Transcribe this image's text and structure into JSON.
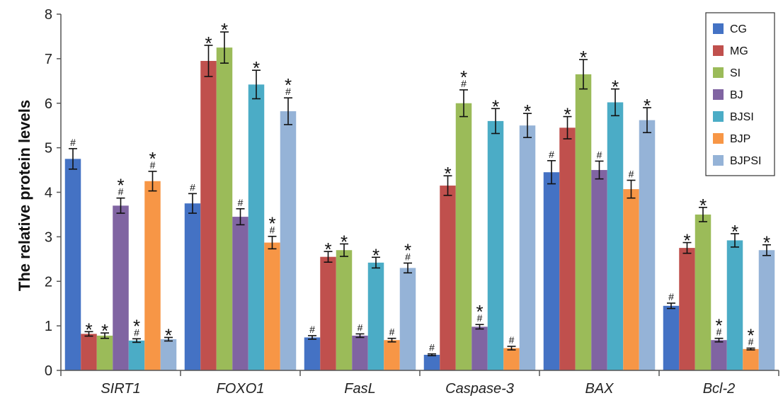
{
  "chart_data": {
    "type": "bar",
    "ylabel": "The relative protein levels",
    "ylim": [
      0,
      8
    ],
    "yticks": [
      "0",
      "1",
      "2",
      "3",
      "4",
      "5",
      "6",
      "7",
      "8"
    ],
    "categories": [
      "SIRT1",
      "FOXO1",
      "FasL",
      "Caspase-3",
      "BAX",
      "Bcl-2"
    ],
    "legend_position": "top-right",
    "series": [
      {
        "name": "CG",
        "color": "#4472C4",
        "values": [
          4.75,
          3.75,
          0.74,
          0.35,
          4.45,
          1.45
        ],
        "errors": [
          0.23,
          0.22,
          0.04,
          0.02,
          0.26,
          0.06
        ],
        "annotations": [
          "#",
          "#",
          "#",
          "#",
          "#",
          "#"
        ]
      },
      {
        "name": "MG",
        "color": "#C0504D",
        "values": [
          0.82,
          6.95,
          2.55,
          4.15,
          5.45,
          2.75
        ],
        "errors": [
          0.05,
          0.35,
          0.12,
          0.22,
          0.25,
          0.12
        ],
        "annotations": [
          "*",
          "*",
          "*",
          "*",
          "*",
          "*"
        ]
      },
      {
        "name": "SI",
        "color": "#9BBB59",
        "values": [
          0.78,
          7.25,
          2.7,
          6.0,
          6.65,
          3.5
        ],
        "errors": [
          0.06,
          0.35,
          0.14,
          0.3,
          0.33,
          0.16
        ],
        "annotations": [
          "*",
          "*",
          "*",
          "*\n#",
          "*",
          "*"
        ]
      },
      {
        "name": "BJ",
        "color": "#8064A2",
        "values": [
          3.7,
          3.45,
          0.78,
          0.98,
          4.5,
          0.68
        ],
        "errors": [
          0.17,
          0.18,
          0.04,
          0.05,
          0.2,
          0.04
        ],
        "annotations": [
          "*\n#",
          "#",
          "#",
          "*\n#",
          "#",
          "*\n#"
        ]
      },
      {
        "name": "BJSI",
        "color": "#4BACC6",
        "values": [
          0.67,
          6.42,
          2.42,
          5.6,
          6.02,
          2.92
        ],
        "errors": [
          0.04,
          0.32,
          0.12,
          0.28,
          0.3,
          0.15
        ],
        "annotations": [
          "*\n#",
          "*",
          "*",
          "*",
          "*",
          "*"
        ]
      },
      {
        "name": "BJP",
        "color": "#F79646",
        "values": [
          4.25,
          2.87,
          0.68,
          0.5,
          4.07,
          0.48
        ],
        "errors": [
          0.22,
          0.14,
          0.04,
          0.04,
          0.2,
          0.02
        ],
        "annotations": [
          "*\n#",
          "*\n#",
          "#",
          "#",
          "#",
          "*\n#"
        ]
      },
      {
        "name": "BJPSI",
        "color": "#95B3D7",
        "values": [
          0.7,
          5.82,
          2.3,
          5.5,
          5.62,
          2.7
        ],
        "errors": [
          0.04,
          0.3,
          0.11,
          0.27,
          0.28,
          0.12
        ],
        "annotations": [
          "*",
          "*\n#",
          "*\n#",
          "*",
          "*",
          "*"
        ]
      }
    ]
  }
}
